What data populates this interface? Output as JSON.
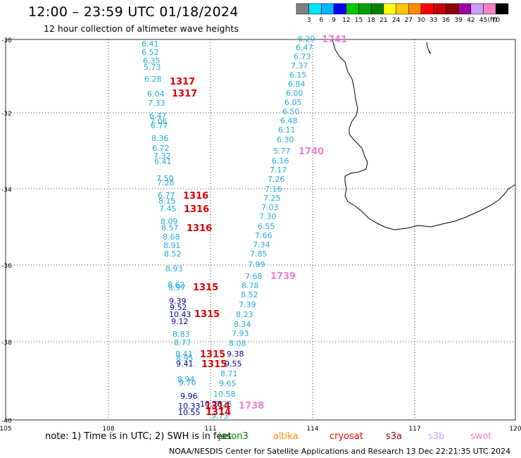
{
  "header": {
    "title": "12:00 – 23:59 UTC 01/18/2024",
    "subtitle": "12 hour collection of altimeter wave heights"
  },
  "color_scale": {
    "labels": [
      "3",
      "6",
      "9",
      "12",
      "15",
      "18",
      "21",
      "24",
      "27",
      "30",
      "33",
      "36",
      "39",
      "42",
      "45",
      "70"
    ],
    "unit": "(ft)",
    "colors": [
      "#808080",
      "#00e5ff",
      "#00b4ff",
      "#0000ff",
      "#00c800",
      "#00a000",
      "#008000",
      "#ffff00",
      "#ffc800",
      "#ff8c00",
      "#ff0000",
      "#c80000",
      "#8c0000",
      "#a000a0",
      "#c8a0ff",
      "#ff80c0",
      "#000000"
    ]
  },
  "axes": {
    "lat_labels": [
      "-30",
      "-32",
      "-34",
      "-36",
      "-38",
      "-40"
    ],
    "lon_labels": [
      "105",
      "108",
      "111",
      "114",
      "117",
      "120"
    ]
  },
  "tracks": {
    "cyan": [
      "6.41",
      "6.52",
      "6.35",
      "5.73",
      "6.28",
      "6.04",
      "7.33",
      "6.47",
      "7.06",
      "6.77",
      "8.36",
      "6.72",
      "7.32",
      "6.41",
      "7.50",
      "7.28",
      "6.77",
      "8.15",
      "7.45",
      "8.09",
      "8.57",
      "8.68",
      "8.91",
      "8.52",
      "8.93",
      "8.62",
      "8.97",
      "8.83",
      "8.77",
      "8.41",
      "8.95",
      "8.94",
      "9.70",
      "6.29",
      "6.47",
      "6.73",
      "7.37",
      "6.15",
      "6.84",
      "6.00",
      "6.05",
      "6.50",
      "6.48",
      "6.11",
      "6.30",
      "5.77",
      "6.16",
      "7.17",
      "7.26",
      "7.16",
      "7.25",
      "7.03",
      "7.30",
      "6.55",
      "7.66",
      "7.34",
      "7.85",
      "7.99",
      "7.68",
      "8.78",
      "8.52",
      "7.39",
      "8.23",
      "8.34",
      "7.93",
      "8.08",
      "8.71",
      "9.65",
      "10.58",
      "9.73",
      "9.28"
    ],
    "navy": [
      "9.39",
      "9.52",
      "10.43",
      "9.12",
      "9.41",
      "9.38",
      "9.55",
      "9.96",
      "10.33",
      "10.55",
      "10.28"
    ],
    "pass_labels": [
      "1741",
      "1317",
      "1317",
      "1740",
      "1316",
      "1316",
      "1316",
      "1739",
      "1315",
      "1315",
      "1315",
      "1315",
      "1738",
      "1314",
      "1314"
    ]
  },
  "note": "note:  1) Time is in UTC;  2) SWH is in feet",
  "satellites": [
    {
      "name": "jason3",
      "color": "#008000"
    },
    {
      "name": "altika",
      "color": "#ff8c00"
    },
    {
      "name": "cryosat",
      "color": "#ff0000"
    },
    {
      "name": "s3a",
      "color": "#a00000"
    },
    {
      "name": "s3b",
      "color": "#c8a0ff"
    },
    {
      "name": "swot",
      "color": "#ff80c0"
    }
  ],
  "footer": "NOAA/NESDIS Center for Satellite Applications and Research    13 Dec 22:21:35 UTC 2024"
}
